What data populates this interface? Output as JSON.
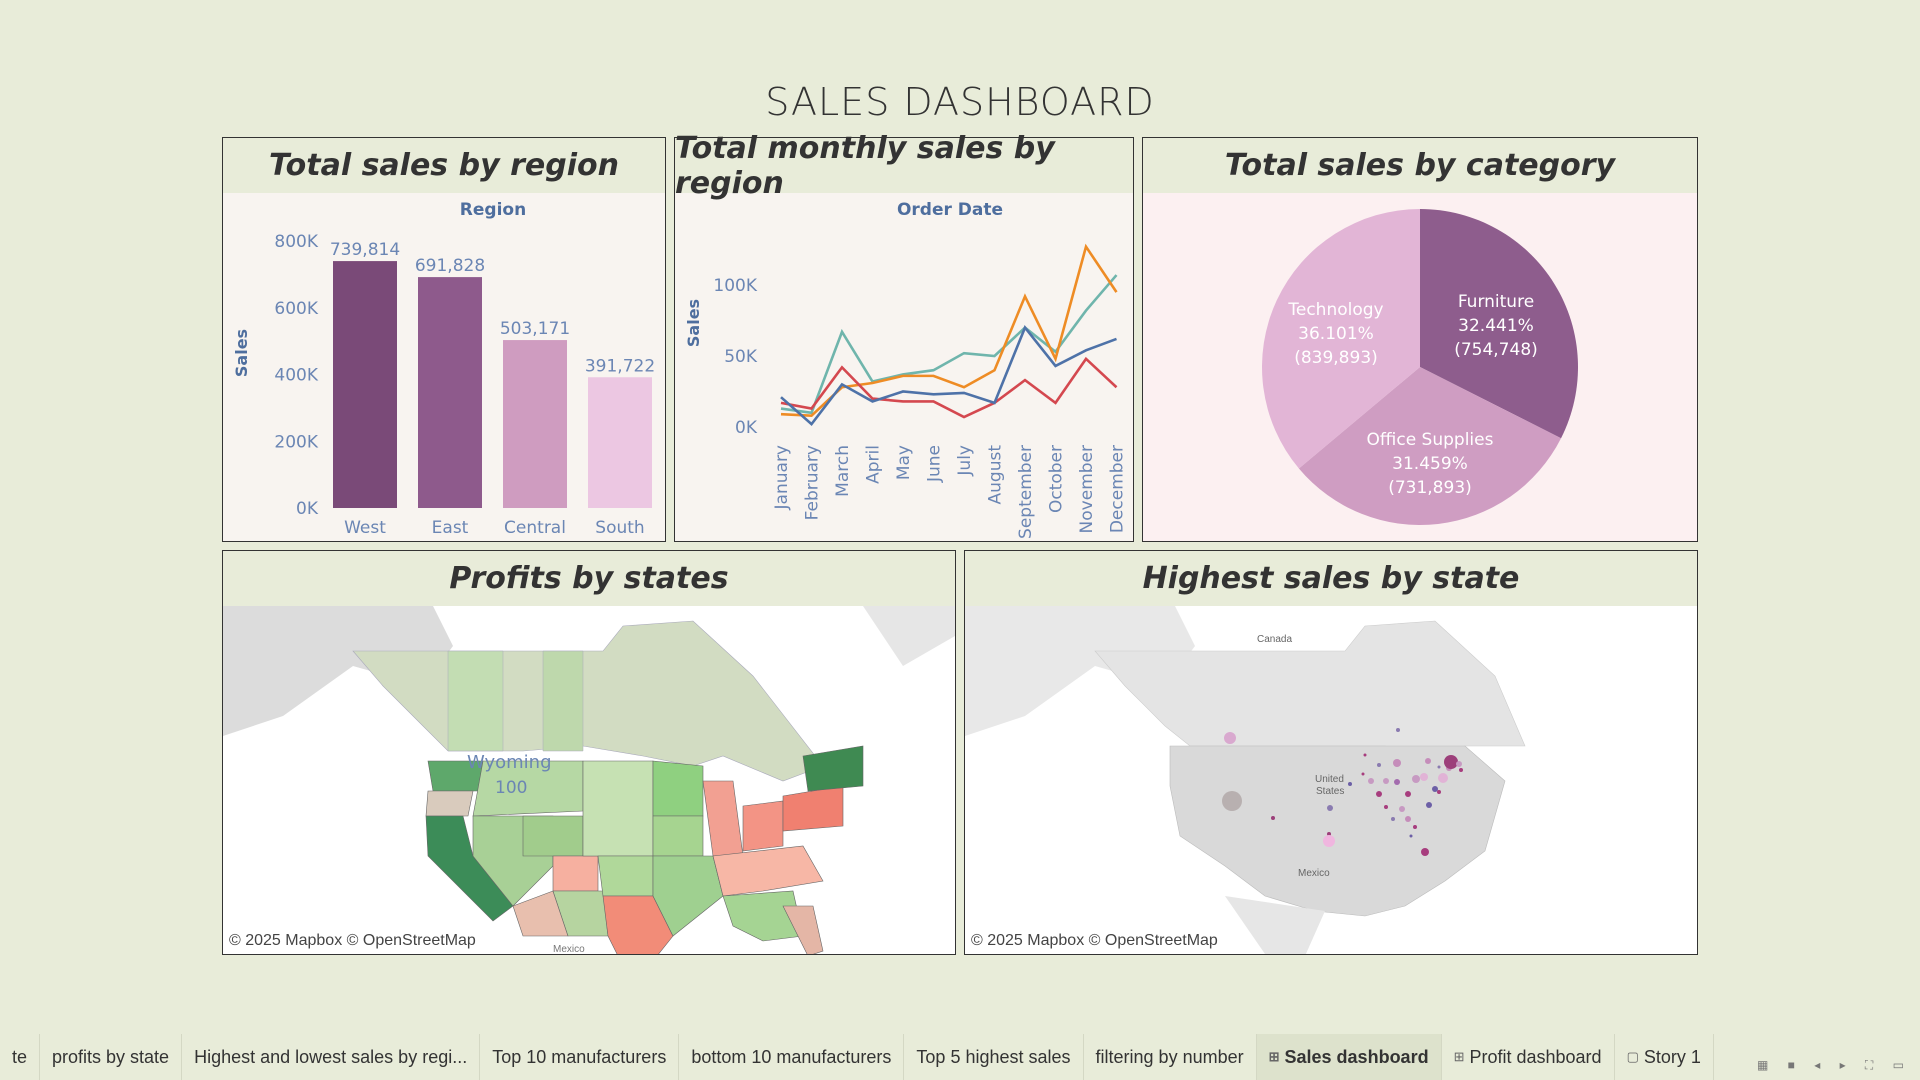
{
  "dashboard": {
    "title": "SALES DASHBOARD"
  },
  "bar_panel": {
    "title": "Total sales by region"
  },
  "line_panel": {
    "title": "Total  monthly sales by region"
  },
  "pie_panel": {
    "title": "Total sales by category"
  },
  "map1": {
    "title": "Profits by states",
    "credit": "© 2025 Mapbox © OpenStreetMap",
    "state_label": "Wyoming",
    "state_value": "100",
    "country_label": "Mexico"
  },
  "map2": {
    "title": "Highest sales by state",
    "credit": "© 2025 Mapbox © OpenStreetMap",
    "labels": [
      "Canada",
      "United",
      "States",
      "Mexico"
    ]
  },
  "chart_data": [
    {
      "type": "bar",
      "title": "Total sales by region",
      "header": "Region",
      "ylabel": "Sales",
      "categories": [
        "West",
        "East",
        "Central",
        "South"
      ],
      "values": [
        739814,
        691828,
        503171,
        391722
      ],
      "value_labels": [
        "739,814",
        "691,828",
        "503,171",
        "391,722"
      ],
      "yticks": [
        "0K",
        "200K",
        "400K",
        "600K",
        "800K"
      ],
      "ylim": [
        0,
        800000
      ],
      "colors": [
        "#7a4a78",
        "#8e5a8c",
        "#cf9cc0",
        "#ecc7e2"
      ]
    },
    {
      "type": "line",
      "title": "Total  monthly sales by region",
      "header": "Order Date",
      "ylabel": "Sales",
      "categories": [
        "January",
        "February",
        "March",
        "April",
        "May",
        "June",
        "July",
        "August",
        "September",
        "October",
        "November",
        "December"
      ],
      "yticks": [
        "0K",
        "50K",
        "100K"
      ],
      "ylim": [
        0,
        100000
      ],
      "series": [
        {
          "color": "#6fb5ac",
          "values": [
            13000,
            10000,
            67000,
            32000,
            37000,
            40000,
            52000,
            50000,
            70000,
            53000,
            82000,
            107000
          ]
        },
        {
          "color": "#ee8c25",
          "values": [
            9000,
            8000,
            28000,
            31000,
            36000,
            36000,
            28000,
            40000,
            92000,
            48000,
            127000,
            95000
          ]
        },
        {
          "color": "#d4484f",
          "values": [
            17000,
            13000,
            42000,
            20000,
            18000,
            18000,
            7000,
            17000,
            33000,
            17000,
            48000,
            28000
          ]
        },
        {
          "color": "#4e72a8",
          "values": [
            21000,
            2000,
            30000,
            18000,
            25000,
            23000,
            24000,
            17000,
            70000,
            43000,
            54000,
            62000
          ]
        }
      ]
    },
    {
      "type": "pie",
      "title": "Total sales by category",
      "slices": [
        {
          "label": "Furniture",
          "percent": "32.441%",
          "value": "(754,748)",
          "share": 32.441,
          "color": "#8e5d8d",
          "text_color": "#ffffff"
        },
        {
          "label": "Office Supplies",
          "percent": "31.459%",
          "value": "(731,893)",
          "share": 31.459,
          "color": "#cf9dc2",
          "text_color": "#ffffff"
        },
        {
          "label": "Technology",
          "percent": "36.101%",
          "value": "(839,893)",
          "share": 36.101,
          "color": "#e2b5d6",
          "text_color": "#ffffff"
        }
      ]
    }
  ],
  "tabs": [
    {
      "label": "te",
      "icon": ""
    },
    {
      "label": "profits by state",
      "icon": ""
    },
    {
      "label": "Highest and lowest sales by regi...",
      "icon": ""
    },
    {
      "label": "Top 10 manufacturers",
      "icon": ""
    },
    {
      "label": "bottom 10 manufacturers",
      "icon": ""
    },
    {
      "label": "Top 5 highest sales",
      "icon": ""
    },
    {
      "label": "filtering by number",
      "icon": ""
    },
    {
      "label": "Sales dashboard",
      "icon": "dashboard-icon",
      "active": true
    },
    {
      "label": "Profit dashboard",
      "icon": "dashboard-icon"
    },
    {
      "label": "Story 1",
      "icon": "story-icon"
    }
  ]
}
